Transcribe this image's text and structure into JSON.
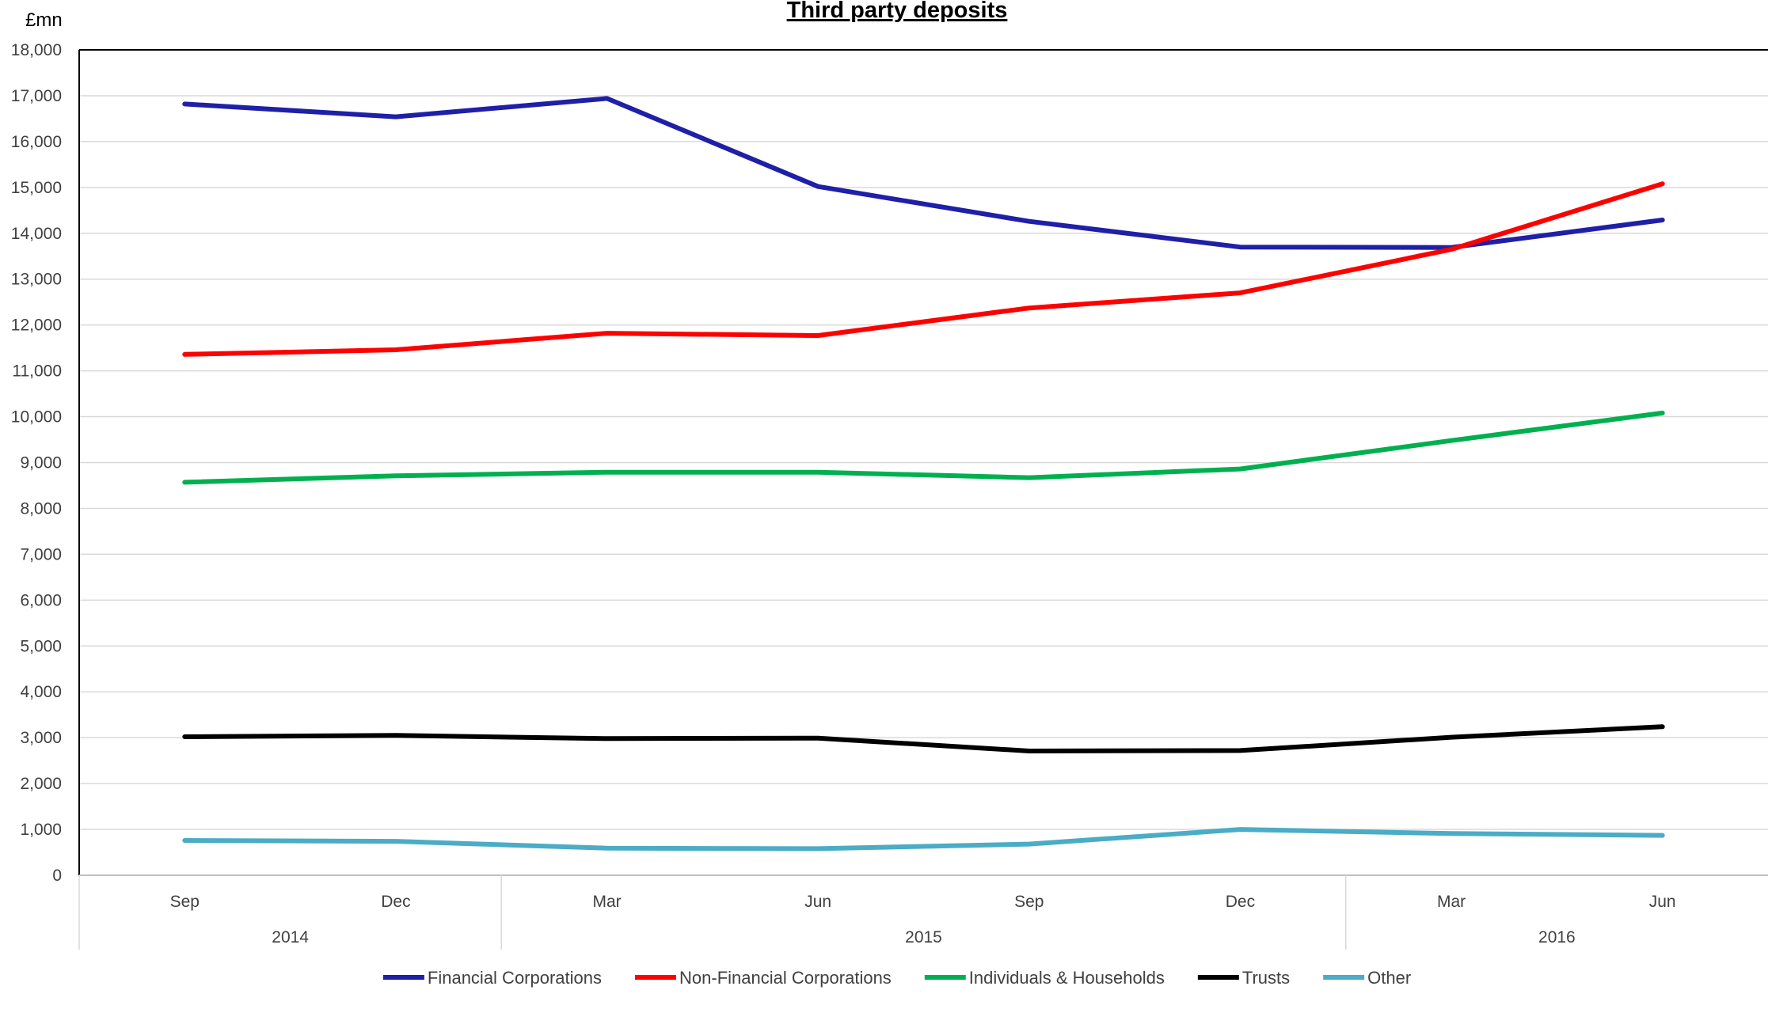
{
  "chart_data": {
    "type": "line",
    "title": "Third party deposits",
    "ylabel": "£mn",
    "xlabel": "",
    "ylim": [
      0,
      18000
    ],
    "ytick_step": 1000,
    "y_tick_labels": [
      "0",
      "1,000",
      "2,000",
      "3,000",
      "4,000",
      "5,000",
      "6,000",
      "7,000",
      "8,000",
      "9,000",
      "10,000",
      "11,000",
      "12,000",
      "13,000",
      "14,000",
      "15,000",
      "16,000",
      "17,000",
      "18,000"
    ],
    "categories": [
      "Sep",
      "Dec",
      "Mar",
      "Jun",
      "Sep",
      "Dec",
      "Mar",
      "Jun"
    ],
    "category_groups": [
      {
        "label": "2014",
        "span": [
          0,
          1
        ]
      },
      {
        "label": "2015",
        "span": [
          2,
          5
        ]
      },
      {
        "label": "2016",
        "span": [
          6,
          7
        ]
      }
    ],
    "grid": true,
    "legend_position": "bottom",
    "series": [
      {
        "name": "Financial Corporations",
        "color": "#1f1fa8",
        "values": [
          16820,
          16540,
          16940,
          15020,
          14260,
          13700,
          13690,
          14290
        ]
      },
      {
        "name": "Non-Financial Corporations",
        "color": "#ff0000",
        "values": [
          11360,
          11460,
          11820,
          11770,
          12370,
          12700,
          13650,
          15080
        ]
      },
      {
        "name": "Individuals & Households",
        "color": "#00b050",
        "values": [
          8570,
          8710,
          8790,
          8790,
          8670,
          8860,
          9480,
          10080
        ]
      },
      {
        "name": "Trusts",
        "color": "#000000",
        "values": [
          3020,
          3050,
          2980,
          2990,
          2710,
          2720,
          3010,
          3240
        ]
      },
      {
        "name": "Other",
        "color": "#4bacc6",
        "values": [
          760,
          740,
          590,
          580,
          680,
          1000,
          910,
          870
        ]
      }
    ]
  }
}
